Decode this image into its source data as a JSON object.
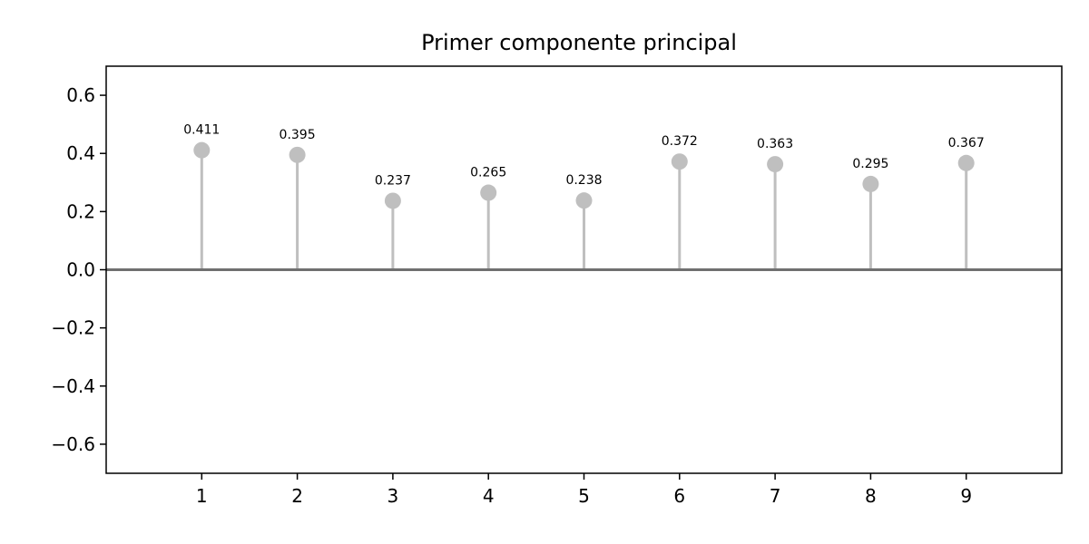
{
  "chart_data": {
    "type": "stem",
    "title": "Primer componente principal",
    "xlabel": "",
    "ylabel": "",
    "x": [
      1,
      2,
      3,
      4,
      5,
      6,
      7,
      8,
      9
    ],
    "values": [
      0.411,
      0.395,
      0.237,
      0.265,
      0.238,
      0.372,
      0.363,
      0.295,
      0.367
    ],
    "data_labels": [
      "0.411",
      "0.395",
      "0.237",
      "0.265",
      "0.238",
      "0.372",
      "0.363",
      "0.295",
      "0.367"
    ],
    "xlim": [
      0,
      10
    ],
    "ylim": [
      -0.7,
      0.7
    ],
    "xticks": [
      "1",
      "2",
      "3",
      "4",
      "5",
      "6",
      "7",
      "8",
      "9"
    ],
    "yticks": [
      0.6,
      0.4,
      0.2,
      0.0,
      -0.2,
      -0.4,
      -0.6
    ],
    "ytick_labels": [
      "0.6",
      "0.4",
      "0.2",
      "0.0",
      "−0.2",
      "−0.4",
      "−0.6"
    ],
    "grid": false,
    "colors": {
      "stem": "#bfbfbf",
      "baseline": "#707070",
      "axes": "#000000"
    }
  }
}
